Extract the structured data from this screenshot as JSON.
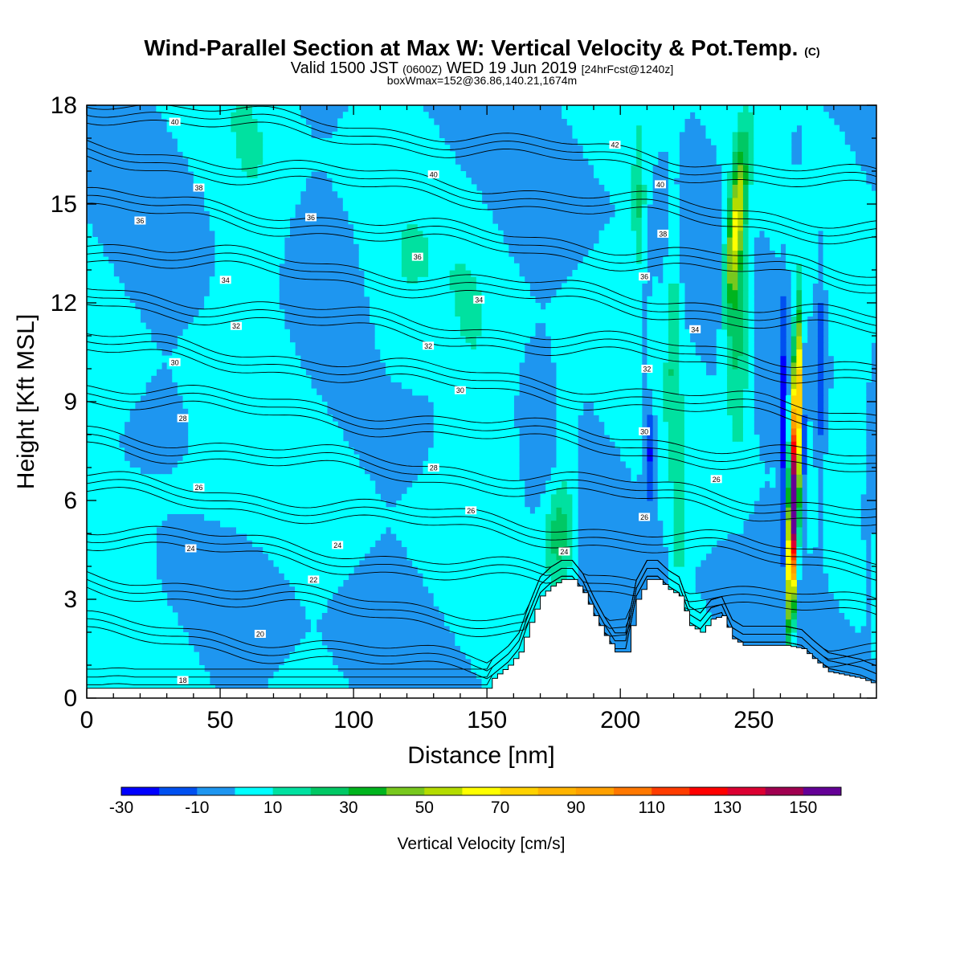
{
  "title": {
    "main": "Wind-Parallel Section at Max W: Vertical Velocity & Pot.Temp.",
    "copyright": "(C)",
    "valid_prefix": "Valid 1500 JST",
    "valid_utc": "(0600Z)",
    "valid_date": "WED 19 Jun 2019",
    "forecast": "[24hrFcst@1240z]",
    "box": "boxWmax=152@36.86,140.21,1674m"
  },
  "chart_data": {
    "type": "heatmap",
    "xlabel": "Distance [nm]",
    "ylabel": "Height [Kft MSL]",
    "xlim": [
      0,
      296
    ],
    "ylim": [
      0,
      18
    ],
    "xticks": [
      0,
      50,
      100,
      150,
      200,
      250
    ],
    "yticks": [
      0,
      3,
      6,
      9,
      12,
      15,
      18
    ],
    "colorbar": {
      "label": "Vertical Velocity [cm/s]",
      "ticks": [
        -30,
        -10,
        10,
        30,
        50,
        70,
        90,
        110,
        130,
        150
      ],
      "bounds": [
        -30,
        -20,
        -10,
        0,
        10,
        20,
        30,
        40,
        50,
        60,
        70,
        80,
        90,
        100,
        110,
        120,
        130,
        140,
        150,
        160
      ],
      "colors": [
        "#0000ff",
        "#0050f0",
        "#1e96f0",
        "#00ffff",
        "#00e1a0",
        "#00c864",
        "#00b41e",
        "#78c81e",
        "#b4dc00",
        "#ffff00",
        "#ffd200",
        "#ffb400",
        "#ffa000",
        "#ff7800",
        "#ff3c00",
        "#ff0000",
        "#dc0032",
        "#a00050",
        "#640096"
      ]
    },
    "terrain": [
      [
        0,
        0.3
      ],
      [
        150,
        0.3
      ],
      [
        152,
        0.6
      ],
      [
        158,
        1.0
      ],
      [
        162,
        1.4
      ],
      [
        166,
        2.3
      ],
      [
        170,
        3.1
      ],
      [
        174,
        3.4
      ],
      [
        178,
        3.6
      ],
      [
        182,
        3.6
      ],
      [
        186,
        3.2
      ],
      [
        190,
        2.5
      ],
      [
        194,
        1.9
      ],
      [
        198,
        1.4
      ],
      [
        202,
        1.4
      ],
      [
        206,
        3.0
      ],
      [
        210,
        3.6
      ],
      [
        214,
        3.6
      ],
      [
        218,
        3.3
      ],
      [
        222,
        3.1
      ],
      [
        226,
        2.2
      ],
      [
        230,
        2.0
      ],
      [
        234,
        2.4
      ],
      [
        238,
        2.5
      ],
      [
        242,
        1.8
      ],
      [
        246,
        1.6
      ],
      [
        262,
        1.6
      ],
      [
        268,
        1.5
      ],
      [
        272,
        1.2
      ],
      [
        278,
        0.8
      ],
      [
        290,
        0.6
      ],
      [
        296,
        0.4
      ]
    ],
    "theta_contours": {
      "levels": [
        18,
        20,
        22,
        24,
        26,
        28,
        30,
        32,
        34,
        36,
        38,
        40,
        42
      ],
      "labels": [
        {
          "text": "18",
          "x": 36,
          "y": 0.55
        },
        {
          "text": "20",
          "x": 65,
          "y": 1.95
        },
        {
          "text": "22",
          "x": 85,
          "y": 3.6
        },
        {
          "text": "24",
          "x": 39,
          "y": 4.55
        },
        {
          "text": "24",
          "x": 94,
          "y": 4.65
        },
        {
          "text": "24",
          "x": 179,
          "y": 4.45
        },
        {
          "text": "26",
          "x": 42,
          "y": 6.4
        },
        {
          "text": "26",
          "x": 144,
          "y": 5.7
        },
        {
          "text": "26",
          "x": 209,
          "y": 5.5
        },
        {
          "text": "26",
          "x": 236,
          "y": 6.65
        },
        {
          "text": "28",
          "x": 36,
          "y": 8.5
        },
        {
          "text": "28",
          "x": 130,
          "y": 7.0
        },
        {
          "text": "30",
          "x": 33,
          "y": 10.2
        },
        {
          "text": "30",
          "x": 140,
          "y": 9.35
        },
        {
          "text": "30",
          "x": 209,
          "y": 8.1
        },
        {
          "text": "32",
          "x": 56,
          "y": 11.3
        },
        {
          "text": "32",
          "x": 128,
          "y": 10.7
        },
        {
          "text": "32",
          "x": 210,
          "y": 10.0
        },
        {
          "text": "34",
          "x": 52,
          "y": 12.7
        },
        {
          "text": "34",
          "x": 147,
          "y": 12.1
        },
        {
          "text": "34",
          "x": 228,
          "y": 11.2
        },
        {
          "text": "36",
          "x": 20,
          "y": 14.5
        },
        {
          "text": "36",
          "x": 84,
          "y": 14.6
        },
        {
          "text": "36",
          "x": 124,
          "y": 13.4
        },
        {
          "text": "36",
          "x": 209,
          "y": 12.8
        },
        {
          "text": "38",
          "x": 42,
          "y": 15.5
        },
        {
          "text": "38",
          "x": 216,
          "y": 14.1
        },
        {
          "text": "40",
          "x": 33,
          "y": 17.5
        },
        {
          "text": "40",
          "x": 130,
          "y": 15.9
        },
        {
          "text": "40",
          "x": 215,
          "y": 15.6
        },
        {
          "text": "42",
          "x": 198,
          "y": 16.8
        }
      ]
    }
  }
}
